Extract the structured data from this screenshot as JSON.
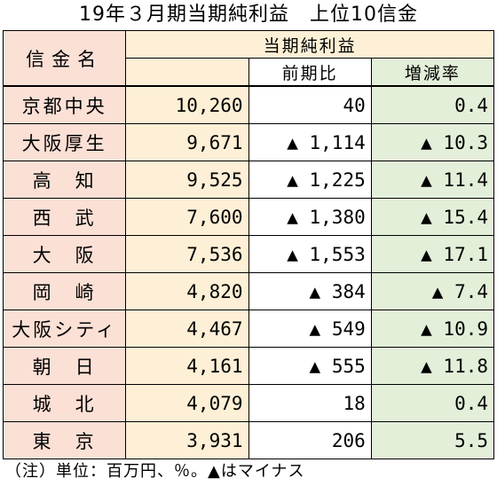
{
  "title": "19年３月期当期純利益　上位10信金",
  "headers": {
    "name": "信金名",
    "group": "当期純利益",
    "prev": "前期比",
    "rate": "増減率"
  },
  "rows": [
    {
      "name": "京都中央",
      "profit": "10,260",
      "prev": "40",
      "rate": "0.4"
    },
    {
      "name": "大阪厚生",
      "profit": "9,671",
      "prev": "▲ 1,114",
      "rate": "▲ 10.3"
    },
    {
      "name": "高　知",
      "profit": "9,525",
      "prev": "▲ 1,225",
      "rate": "▲ 11.4"
    },
    {
      "name": "西　武",
      "profit": "7,600",
      "prev": "▲ 1,380",
      "rate": "▲ 15.4"
    },
    {
      "name": "大　阪",
      "profit": "7,536",
      "prev": "▲ 1,553",
      "rate": "▲ 17.1"
    },
    {
      "name": "岡　崎",
      "profit": "4,820",
      "prev": "▲ 384",
      "rate": "▲ 7.4"
    },
    {
      "name": "大阪シティ",
      "profit": "4,467",
      "prev": "▲ 549",
      "rate": "▲ 10.9"
    },
    {
      "name": "朝　日",
      "profit": "4,161",
      "prev": "▲ 555",
      "rate": "▲ 11.8"
    },
    {
      "name": "城　北",
      "profit": "4,079",
      "prev": "18",
      "rate": "0.4"
    },
    {
      "name": "東　京",
      "profit": "3,931",
      "prev": "206",
      "rate": "5.5"
    }
  ],
  "note": "（注）単位：百万円、％。▲はマイナス",
  "colors": {
    "name_bg": "#fbe0d6",
    "profit_bg": "#fdf0d6",
    "rate_bg": "#e3efd9"
  }
}
